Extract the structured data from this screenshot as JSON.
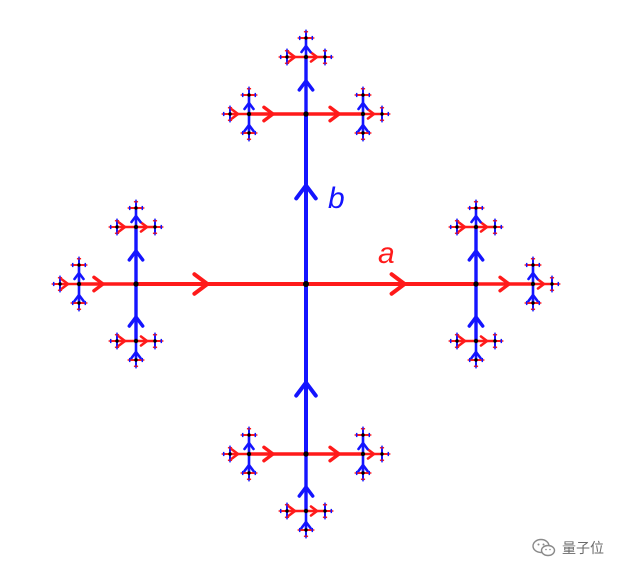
{
  "labels": {
    "a": "a",
    "b": "b"
  },
  "watermark": {
    "text": "量子位",
    "icon": "wechat-icon"
  },
  "colors": {
    "a": "#ff1a1a",
    "b": "#1414ff",
    "vertex": "#000000",
    "background": "#ffffff"
  },
  "diagram": {
    "type": "cayley-graph",
    "generators": [
      "a",
      "b"
    ],
    "depth": 4
  }
}
